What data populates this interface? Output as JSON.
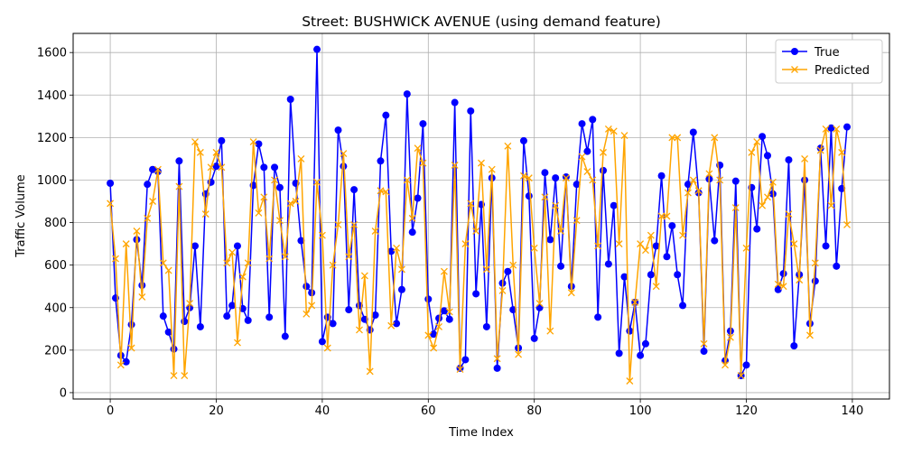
{
  "chart_data": {
    "type": "line",
    "title": "Street: BUSHWICK AVENUE (using demand feature)",
    "xlabel": "Time Index",
    "ylabel": "Traffic Volume",
    "xlim": [
      -7,
      147
    ],
    "ylim": [
      -30,
      1690
    ],
    "xticks": [
      0,
      20,
      40,
      60,
      80,
      100,
      120,
      140
    ],
    "yticks": [
      0,
      200,
      400,
      600,
      800,
      1000,
      1200,
      1400,
      1600
    ],
    "grid": true,
    "legend_position": "top-right",
    "x": [
      0,
      1,
      2,
      3,
      4,
      5,
      6,
      7,
      8,
      9,
      10,
      11,
      12,
      13,
      14,
      15,
      16,
      17,
      18,
      19,
      20,
      21,
      22,
      23,
      24,
      25,
      26,
      27,
      28,
      29,
      30,
      31,
      32,
      33,
      34,
      35,
      36,
      37,
      38,
      39,
      40,
      41,
      42,
      43,
      44,
      45,
      46,
      47,
      48,
      49,
      50,
      51,
      52,
      53,
      54,
      55,
      56,
      57,
      58,
      59,
      60,
      61,
      62,
      63,
      64,
      65,
      66,
      67,
      68,
      69,
      70,
      71,
      72,
      73,
      74,
      75,
      76,
      77,
      78,
      79,
      80,
      81,
      82,
      83,
      84,
      85,
      86,
      87,
      88,
      89,
      90,
      91,
      92,
      93,
      94,
      95,
      96,
      97,
      98,
      99,
      100,
      101,
      102,
      103,
      104,
      105,
      106,
      107,
      108,
      109,
      110,
      111,
      112,
      113,
      114,
      115,
      116,
      117,
      118,
      119,
      120,
      121,
      122,
      123,
      124,
      125,
      126,
      127,
      128,
      129,
      130,
      131,
      132,
      133,
      134,
      135,
      136,
      137,
      138,
      139
    ],
    "series": [
      {
        "name": "True",
        "color": "#0000ff",
        "marker": "circle",
        "values": [
          985,
          445,
          175,
          145,
          320,
          720,
          505,
          980,
          1050,
          1040,
          360,
          285,
          205,
          1090,
          335,
          400,
          690,
          310,
          935,
          990,
          1065,
          1185,
          360,
          410,
          690,
          395,
          340,
          975,
          1170,
          1060,
          355,
          1060,
          965,
          265,
          1380,
          985,
          715,
          500,
          470,
          1615,
          240,
          355,
          325,
          1235,
          1065,
          390,
          955,
          410,
          345,
          295,
          365,
          1090,
          1305,
          665,
          325,
          485,
          1405,
          755,
          915,
          1265,
          440,
          275,
          350,
          385,
          345,
          1365,
          115,
          155,
          1325,
          465,
          885,
          310,
          1010,
          115,
          515,
          570,
          390,
          210,
          1185,
          925,
          255,
          400,
          1035,
          720,
          1010,
          595,
          1015,
          500,
          980,
          1265,
          1135,
          1285,
          355,
          1045,
          605,
          880,
          185,
          545,
          290,
          425,
          175,
          230,
          555,
          690,
          1020,
          640,
          785,
          555,
          410,
          980,
          1225,
          940,
          195,
          1005,
          715,
          1070,
          150,
          290,
          995,
          80,
          130,
          965,
          770,
          1205,
          1115,
          935,
          485,
          560,
          1095,
          220,
          555,
          1000,
          325,
          525,
          1150,
          690,
          1245,
          595,
          960,
          1250
        ]
      },
      {
        "name": "Predicted",
        "color": "#ffa500",
        "marker": "x",
        "values": [
          890,
          630,
          130,
          700,
          210,
          760,
          450,
          820,
          900,
          1050,
          610,
          575,
          80,
          970,
          80,
          420,
          1180,
          1130,
          840,
          1060,
          1130,
          1060,
          610,
          660,
          235,
          545,
          610,
          1180,
          845,
          920,
          630,
          1000,
          810,
          640,
          890,
          900,
          1100,
          370,
          410,
          990,
          740,
          210,
          600,
          790,
          1125,
          640,
          790,
          295,
          550,
          100,
          760,
          950,
          945,
          315,
          680,
          580,
          1000,
          820,
          1150,
          1080,
          270,
          210,
          310,
          570,
          380,
          1070,
          110,
          700,
          890,
          760,
          1080,
          580,
          1050,
          160,
          480,
          1160,
          600,
          180,
          1020,
          1010,
          680,
          420,
          920,
          290,
          880,
          760,
          1010,
          470,
          810,
          1110,
          1040,
          1000,
          690,
          1130,
          1240,
          1230,
          700,
          1210,
          55,
          425,
          700,
          670,
          740,
          500,
          830,
          830,
          1200,
          1200,
          740,
          940,
          1000,
          950,
          230,
          1030,
          1200,
          1000,
          130,
          260,
          870,
          80,
          680,
          1130,
          1180,
          880,
          920,
          990,
          510,
          500,
          840,
          700,
          530,
          1100,
          270,
          610,
          1140,
          1240,
          880,
          1240,
          1130,
          790
        ]
      }
    ]
  }
}
